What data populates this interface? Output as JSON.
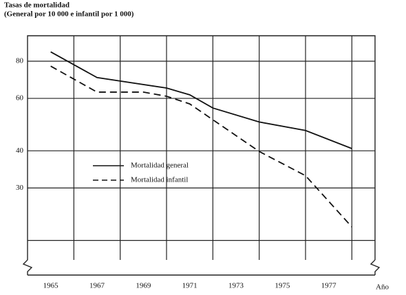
{
  "chart_data": {
    "type": "line",
    "title": "Tasas de mortalidad",
    "subtitle": "(General por 10 000 e infantil por 1 000)",
    "xlabel": "Año",
    "xlim": [
      1964,
      1979
    ],
    "xticks": [
      1965,
      1967,
      1969,
      1971,
      1973,
      1975,
      1977
    ],
    "xgrid": [
      1966,
      1968,
      1970,
      1972,
      1974,
      1976,
      1978
    ],
    "ylim": [
      15.3,
      97.4
    ],
    "yscale": "log",
    "yticks": [
      30,
      40,
      60,
      80
    ],
    "unlabeled_yticks": [
      20
    ],
    "grid": true,
    "series": [
      {
        "name": "Mortalidad general",
        "color": "#111111",
        "style": "solid",
        "x": [
          1965,
          1967,
          1970,
          1971,
          1972,
          1974,
          1976,
          1978
        ],
        "values": [
          86,
          70.5,
          65,
          61.7,
          55.7,
          50,
          46.8,
          40.7
        ]
      },
      {
        "name": "Mortalidad infantil",
        "color": "#111111",
        "style": "dashed",
        "x": [
          1965,
          1967,
          1969,
          1970,
          1971,
          1974,
          1976,
          1978
        ],
        "values": [
          77,
          63,
          63,
          61,
          57.5,
          39.8,
          33,
          22.2
        ]
      }
    ]
  }
}
